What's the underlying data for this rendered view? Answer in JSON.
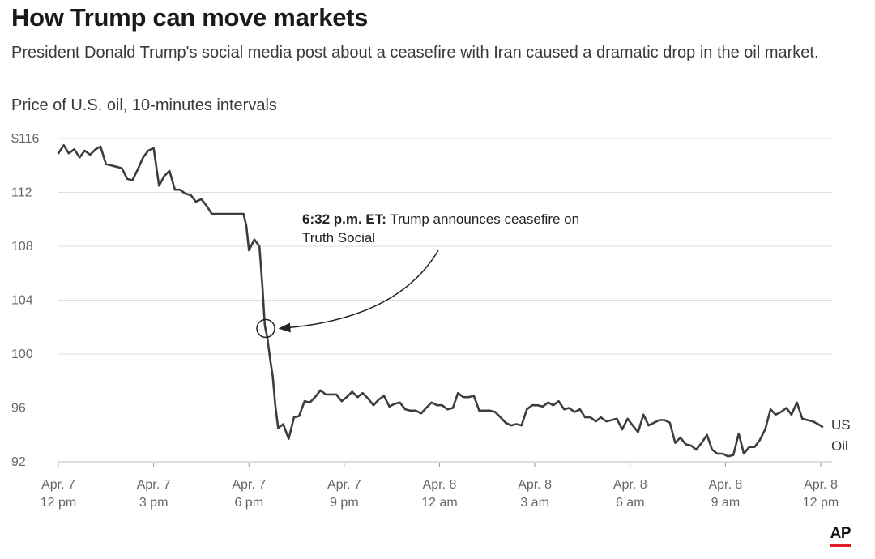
{
  "header": {
    "title": "How Trump can move markets",
    "subtitle": "President Donald Trump's social media post about a ceasefire with Iran caused a dramatic drop in the oil market.",
    "chart_label": "Price of U.S. oil, 10-minutes intervals"
  },
  "footer": {
    "logo_text": "AP",
    "logo_accent": "#e31b23"
  },
  "chart_data": {
    "type": "line",
    "x_unit": "hours since Apr. 7 12 pm",
    "xlim": [
      0,
      24.05
    ],
    "ylim": [
      92,
      116
    ],
    "y_ticks": [
      {
        "value": 116,
        "label": "$116"
      },
      {
        "value": 112,
        "label": "112"
      },
      {
        "value": 108,
        "label": "108"
      },
      {
        "value": 104,
        "label": "104"
      },
      {
        "value": 100,
        "label": "100"
      },
      {
        "value": 96,
        "label": "96"
      },
      {
        "value": 92,
        "label": "92"
      }
    ],
    "x_ticks": [
      {
        "value": 0,
        "line1": "Apr. 7",
        "line2": "12 pm"
      },
      {
        "value": 3,
        "line1": "Apr. 7",
        "line2": "3 pm"
      },
      {
        "value": 6,
        "line1": "Apr. 7",
        "line2": "6 pm"
      },
      {
        "value": 9,
        "line1": "Apr. 7",
        "line2": "9 pm"
      },
      {
        "value": 12,
        "line1": "Apr. 8",
        "line2": "12 am"
      },
      {
        "value": 15,
        "line1": "Apr. 8",
        "line2": "3 am"
      },
      {
        "value": 18,
        "line1": "Apr. 8",
        "line2": "6 am"
      },
      {
        "value": 21,
        "line1": "Apr. 8",
        "line2": "9 am"
      },
      {
        "value": 24,
        "line1": "Apr. 8",
        "line2": "12 pm"
      }
    ],
    "grid": true,
    "series": [
      {
        "name_line1": "US",
        "name_line2": "Oil",
        "color": "#3d3d3d",
        "points": [
          [
            0.0,
            114.9
          ],
          [
            0.17,
            115.5
          ],
          [
            0.33,
            114.9
          ],
          [
            0.5,
            115.2
          ],
          [
            0.67,
            114.6
          ],
          [
            0.83,
            115.1
          ],
          [
            1.0,
            114.8
          ],
          [
            1.17,
            115.2
          ],
          [
            1.33,
            115.4
          ],
          [
            1.5,
            114.1
          ],
          [
            1.67,
            114.0
          ],
          [
            1.83,
            113.9
          ],
          [
            2.0,
            113.8
          ],
          [
            2.17,
            113.0
          ],
          [
            2.33,
            112.9
          ],
          [
            2.5,
            113.7
          ],
          [
            2.67,
            114.6
          ],
          [
            2.83,
            115.1
          ],
          [
            3.0,
            115.3
          ],
          [
            3.17,
            112.5
          ],
          [
            3.33,
            113.2
          ],
          [
            3.5,
            113.6
          ],
          [
            3.67,
            112.2
          ],
          [
            3.83,
            112.2
          ],
          [
            4.0,
            111.9
          ],
          [
            4.17,
            111.8
          ],
          [
            4.33,
            111.3
          ],
          [
            4.5,
            111.5
          ],
          [
            4.67,
            111.0
          ],
          [
            4.83,
            110.4
          ],
          [
            5.0,
            110.4
          ],
          [
            5.17,
            110.4
          ],
          [
            5.33,
            110.4
          ],
          [
            5.5,
            110.4
          ],
          [
            5.67,
            110.4
          ],
          [
            5.83,
            110.4
          ],
          [
            5.92,
            109.5
          ],
          [
            6.0,
            107.7
          ],
          [
            6.17,
            108.5
          ],
          [
            6.33,
            108.0
          ],
          [
            6.42,
            105.2
          ],
          [
            6.5,
            102.1
          ],
          [
            6.58,
            101.2
          ],
          [
            6.67,
            99.6
          ],
          [
            6.75,
            98.3
          ],
          [
            6.83,
            96.2
          ],
          [
            6.92,
            94.5
          ],
          [
            7.08,
            94.8
          ],
          [
            7.25,
            93.7
          ],
          [
            7.42,
            95.3
          ],
          [
            7.58,
            95.4
          ],
          [
            7.75,
            96.5
          ],
          [
            7.92,
            96.4
          ],
          [
            8.08,
            96.8
          ],
          [
            8.25,
            97.3
          ],
          [
            8.42,
            97.0
          ],
          [
            8.58,
            97.0
          ],
          [
            8.75,
            97.0
          ],
          [
            8.92,
            96.5
          ],
          [
            9.08,
            96.8
          ],
          [
            9.25,
            97.2
          ],
          [
            9.42,
            96.8
          ],
          [
            9.58,
            97.1
          ],
          [
            9.75,
            96.7
          ],
          [
            9.92,
            96.2
          ],
          [
            10.08,
            96.6
          ],
          [
            10.25,
            96.9
          ],
          [
            10.42,
            96.1
          ],
          [
            10.58,
            96.3
          ],
          [
            10.75,
            96.4
          ],
          [
            10.92,
            95.9
          ],
          [
            11.08,
            95.8
          ],
          [
            11.25,
            95.8
          ],
          [
            11.42,
            95.6
          ],
          [
            11.58,
            96.0
          ],
          [
            11.75,
            96.4
          ],
          [
            11.92,
            96.2
          ],
          [
            12.08,
            96.2
          ],
          [
            12.25,
            95.9
          ],
          [
            12.42,
            96.0
          ],
          [
            12.58,
            97.1
          ],
          [
            12.75,
            96.8
          ],
          [
            12.92,
            96.8
          ],
          [
            13.08,
            96.9
          ],
          [
            13.25,
            95.8
          ],
          [
            13.42,
            95.8
          ],
          [
            13.58,
            95.8
          ],
          [
            13.75,
            95.7
          ],
          [
            13.92,
            95.3
          ],
          [
            14.08,
            94.9
          ],
          [
            14.25,
            94.7
          ],
          [
            14.42,
            94.8
          ],
          [
            14.58,
            94.7
          ],
          [
            14.75,
            95.9
          ],
          [
            14.92,
            96.2
          ],
          [
            15.08,
            96.2
          ],
          [
            15.25,
            96.1
          ],
          [
            15.42,
            96.4
          ],
          [
            15.58,
            96.2
          ],
          [
            15.75,
            96.5
          ],
          [
            15.92,
            95.9
          ],
          [
            16.08,
            96.0
          ],
          [
            16.25,
            95.7
          ],
          [
            16.42,
            95.9
          ],
          [
            16.58,
            95.3
          ],
          [
            16.75,
            95.3
          ],
          [
            16.92,
            95.0
          ],
          [
            17.08,
            95.3
          ],
          [
            17.25,
            95.0
          ],
          [
            17.42,
            95.1
          ],
          [
            17.58,
            95.2
          ],
          [
            17.75,
            94.4
          ],
          [
            17.92,
            95.2
          ],
          [
            18.08,
            94.7
          ],
          [
            18.25,
            94.2
          ],
          [
            18.42,
            95.5
          ],
          [
            18.58,
            94.7
          ],
          [
            18.75,
            94.9
          ],
          [
            18.92,
            95.1
          ],
          [
            19.08,
            95.1
          ],
          [
            19.25,
            94.9
          ],
          [
            19.42,
            93.4
          ],
          [
            19.58,
            93.8
          ],
          [
            19.75,
            93.3
          ],
          [
            19.92,
            93.2
          ],
          [
            20.08,
            92.9
          ],
          [
            20.25,
            93.4
          ],
          [
            20.42,
            94.0
          ],
          [
            20.58,
            92.9
          ],
          [
            20.75,
            92.6
          ],
          [
            20.92,
            92.6
          ],
          [
            21.08,
            92.4
          ],
          [
            21.25,
            92.5
          ],
          [
            21.42,
            94.1
          ],
          [
            21.58,
            92.6
          ],
          [
            21.75,
            93.1
          ],
          [
            21.92,
            93.1
          ],
          [
            22.08,
            93.6
          ],
          [
            22.25,
            94.4
          ],
          [
            22.42,
            95.9
          ],
          [
            22.58,
            95.5
          ],
          [
            22.75,
            95.7
          ],
          [
            22.92,
            96.0
          ],
          [
            23.08,
            95.5
          ],
          [
            23.25,
            96.4
          ],
          [
            23.42,
            95.2
          ],
          [
            23.58,
            95.1
          ],
          [
            23.75,
            95.0
          ],
          [
            23.92,
            94.8
          ],
          [
            24.05,
            94.6
          ]
        ]
      }
    ],
    "annotation": {
      "bold_text": "6:32 p.m. ET:",
      "text_line1": "Trump announces ceasefire on",
      "text_line2": "Truth Social",
      "x": 6.53,
      "y": 101.9
    }
  }
}
